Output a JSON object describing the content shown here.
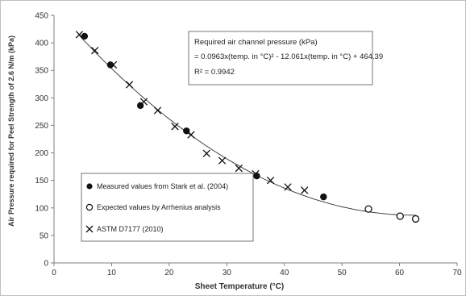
{
  "chart_data": {
    "type": "scatter",
    "title": "",
    "xlabel": "Sheet Temperature (°C)",
    "ylabel": "Air Pressure required for Peel Strength of 2.6 N/m (kPa)",
    "xlim": [
      0,
      70
    ],
    "ylim": [
      0,
      450
    ],
    "xticks": [
      0,
      10,
      20,
      30,
      40,
      50,
      60,
      70
    ],
    "yticks": [
      0,
      50,
      100,
      150,
      200,
      250,
      300,
      350,
      400,
      450
    ],
    "grid": false,
    "series": [
      {
        "name": "Measured values from Stark et al. (2004)",
        "marker": "filled-circle",
        "x": [
          5.3,
          9.8,
          15.0,
          23.0,
          35.2,
          46.8
        ],
        "y": [
          412,
          360,
          286,
          240,
          158,
          120
        ]
      },
      {
        "name": "Expected values by Arrhenius analysis",
        "marker": "open-circle",
        "x": [
          54.6,
          60.1,
          62.8
        ],
        "y": [
          98,
          85,
          80
        ]
      },
      {
        "name": "ASTM D7177 (2010)",
        "marker": "x",
        "x": [
          4.4,
          7.1,
          10.3,
          13.1,
          15.6,
          18.0,
          21.0,
          23.8,
          26.5,
          29.2,
          32.1,
          35.0,
          37.6,
          40.6,
          43.5
        ],
        "y": [
          415,
          386,
          360,
          324,
          293,
          277,
          248,
          233,
          199,
          186,
          172,
          162,
          150,
          138,
          132
        ]
      }
    ],
    "trendline": {
      "type": "polynomial",
      "coefficients": [
        0.0963,
        -12.061,
        464.39
      ],
      "x_range": [
        4.4,
        62.8
      ]
    },
    "annotation": {
      "line1": "Required air channel pressure (kPa)",
      "line2": "= 0.0963x(temp. in °C)² - 12.061x(temp. in °C) + 464.39",
      "line3": "R² = 0.9942"
    },
    "legend": {
      "placement": "bottom-left",
      "items": [
        "Measured values from Stark et al. (2004)",
        "Expected values by Arrhenius analysis",
        "ASTM D7177 (2010)"
      ]
    }
  }
}
